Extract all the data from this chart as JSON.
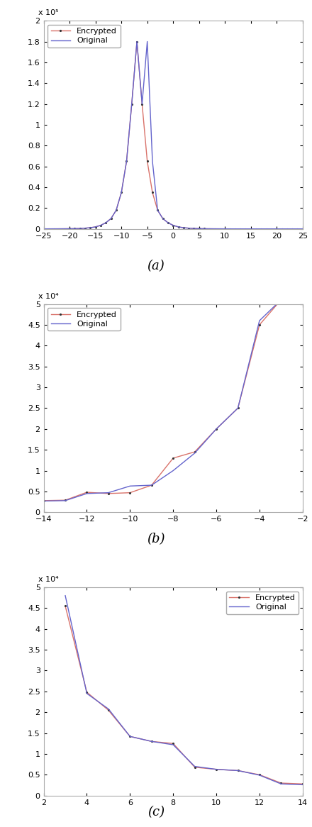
{
  "fig_width": 4.4,
  "fig_height": 11.66,
  "plot_a": {
    "xlim": [
      -25,
      25
    ],
    "ylim_raw": [
      0,
      200000
    ],
    "yticks_raw": [
      0,
      20000,
      40000,
      60000,
      80000,
      100000,
      120000,
      140000,
      160000,
      180000,
      200000
    ],
    "ytick_labels": [
      "0",
      "0.2",
      "0.4",
      "0.6",
      "0.8",
      "1",
      "1.2",
      "1.4",
      "1.6",
      "1.8",
      "2"
    ],
    "xticks": [
      -25,
      -20,
      -15,
      -10,
      -5,
      0,
      5,
      10,
      15,
      20,
      25
    ],
    "scale_label": "x 10⁵",
    "label": "(a)",
    "enc_x": [
      -25,
      -24,
      -23,
      -22,
      -21,
      -20,
      -19,
      -18,
      -17,
      -16,
      -15,
      -14,
      -13,
      -12,
      -11,
      -10,
      -9,
      -8,
      -7,
      -6,
      -5,
      -4,
      -3,
      -2,
      -1,
      0,
      1,
      2,
      3,
      4,
      5,
      6,
      7,
      8,
      9,
      10,
      11,
      12,
      13,
      14,
      15,
      16,
      17,
      18,
      19,
      20,
      21,
      22,
      23,
      24,
      25
    ],
    "enc_y": [
      100,
      120,
      140,
      160,
      200,
      250,
      350,
      500,
      800,
      1200,
      2000,
      3500,
      6000,
      10000,
      18000,
      35000,
      65000,
      120000,
      180000,
      120000,
      65000,
      35000,
      18000,
      10000,
      6000,
      3500,
      2000,
      1200,
      800,
      500,
      350,
      250,
      200,
      160,
      140,
      120,
      100,
      100,
      100,
      100,
      100,
      100,
      100,
      100,
      100,
      100,
      100,
      100,
      100,
      100,
      100
    ],
    "orig_x": [
      -25,
      -24,
      -23,
      -22,
      -21,
      -20,
      -19,
      -18,
      -17,
      -16,
      -15,
      -14,
      -13,
      -12,
      -11,
      -10,
      -9,
      -8,
      -7,
      -6,
      -5,
      -4,
      -3,
      -2,
      -1,
      0,
      1,
      2,
      3,
      4,
      5,
      6,
      7,
      8,
      9,
      10,
      11,
      12,
      13,
      14,
      15,
      16,
      17,
      18,
      19,
      20,
      21,
      22,
      23,
      24,
      25
    ],
    "orig_y": [
      100,
      120,
      140,
      160,
      200,
      250,
      350,
      500,
      800,
      1200,
      2000,
      3500,
      6000,
      10000,
      18000,
      35000,
      65000,
      120000,
      180000,
      120000,
      180000,
      65000,
      18000,
      10000,
      6000,
      3500,
      2000,
      1200,
      800,
      500,
      350,
      250,
      200,
      160,
      140,
      120,
      100,
      100,
      100,
      100,
      100,
      100,
      100,
      100,
      100,
      100,
      100,
      100,
      100,
      100,
      100
    ]
  },
  "plot_b": {
    "xlim": [
      -14,
      -2
    ],
    "ylim_raw": [
      0,
      50000
    ],
    "yticks_raw": [
      0,
      5000,
      10000,
      15000,
      20000,
      25000,
      30000,
      35000,
      40000,
      45000,
      50000
    ],
    "ytick_labels": [
      "0",
      "0.5",
      "1",
      "1.5",
      "2",
      "2.5",
      "3",
      "3.5",
      "4",
      "4.5",
      "5"
    ],
    "xticks": [
      -14,
      -12,
      -10,
      -8,
      -6,
      -4,
      -2
    ],
    "scale_label": "x 10⁴",
    "label": "(b)",
    "enc_x": [
      -14,
      -13,
      -12,
      -11,
      -10,
      -9,
      -8,
      -7,
      -6,
      -5,
      -4,
      -3
    ],
    "enc_y": [
      2800,
      2900,
      4800,
      4500,
      4700,
      6500,
      13000,
      14500,
      20000,
      25000,
      45000,
      51000
    ],
    "orig_x": [
      -14,
      -13,
      -12,
      -11,
      -10,
      -9,
      -8,
      -7,
      -6,
      -5,
      -4,
      -3
    ],
    "orig_y": [
      2700,
      2800,
      4500,
      4700,
      6300,
      6500,
      10000,
      14200,
      20000,
      25000,
      46000,
      51000
    ]
  },
  "plot_c": {
    "xlim": [
      2,
      14
    ],
    "ylim_raw": [
      0,
      50000
    ],
    "yticks_raw": [
      0,
      5000,
      10000,
      15000,
      20000,
      25000,
      30000,
      35000,
      40000,
      45000,
      50000
    ],
    "ytick_labels": [
      "0",
      "0.5",
      "1",
      "1.5",
      "2",
      "2.5",
      "3",
      "3.5",
      "4",
      "4.5",
      "5"
    ],
    "xticks": [
      2,
      4,
      6,
      8,
      10,
      12,
      14
    ],
    "scale_label": "x 10⁴",
    "label": "(c)",
    "enc_x": [
      3,
      4,
      5,
      6,
      7,
      8,
      9,
      10,
      11,
      12,
      13,
      14
    ],
    "enc_y": [
      45500,
      24800,
      20500,
      14200,
      13000,
      12500,
      6800,
      6300,
      6000,
      5000,
      3000,
      2800
    ],
    "orig_x": [
      3,
      4,
      5,
      6,
      7,
      8,
      9,
      10,
      11,
      12,
      13,
      14
    ],
    "orig_y": [
      48000,
      24500,
      20800,
      14200,
      13000,
      12200,
      7000,
      6300,
      6000,
      4900,
      2800,
      2600
    ]
  },
  "enc_color": "#d9726a",
  "orig_color": "#6464cc",
  "enc_linewidth": 1.0,
  "orig_linewidth": 1.0,
  "label_fontsize": 13,
  "legend_fontsize": 8,
  "tick_fontsize": 8
}
